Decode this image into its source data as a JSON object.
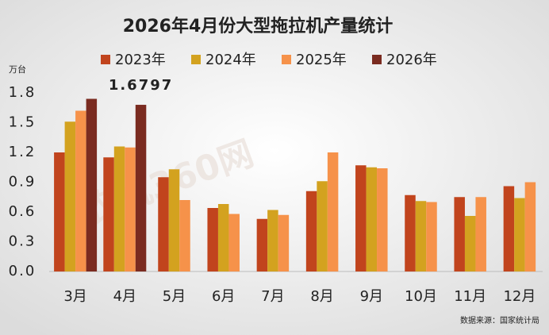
{
  "chart_data": {
    "type": "bar",
    "title": "2026年4月份大型拖拉机产量统计",
    "y_unit": "万台",
    "source": "数据来源：国家统计局",
    "watermark": "农机360网",
    "categories": [
      "3月",
      "4月",
      "5月",
      "6月",
      "7月",
      "8月",
      "9月",
      "10月",
      "11月",
      "12月"
    ],
    "series": [
      {
        "name": "2023年",
        "color": "#c1441d",
        "values": [
          1.2,
          1.15,
          0.95,
          0.64,
          0.53,
          0.81,
          1.07,
          0.77,
          0.75,
          0.86
        ]
      },
      {
        "name": "2024年",
        "color": "#d3a21f",
        "values": [
          1.51,
          1.26,
          1.03,
          0.68,
          0.62,
          0.91,
          1.05,
          0.71,
          0.56,
          0.74
        ]
      },
      {
        "name": "2025年",
        "color": "#f6924a",
        "values": [
          1.62,
          1.25,
          0.72,
          0.58,
          0.57,
          1.2,
          1.04,
          0.7,
          0.75,
          0.9
        ]
      },
      {
        "name": "2026年",
        "color": "#7a2b20",
        "values": [
          1.74,
          1.6797,
          null,
          null,
          null,
          null,
          null,
          null,
          null,
          null
        ],
        "value_labels": [
          null,
          "1.6797",
          null,
          null,
          null,
          null,
          null,
          null,
          null,
          null
        ]
      }
    ],
    "ylim": [
      0,
      1.8
    ],
    "yticks": [
      {
        "value": 0,
        "label": "0.0"
      },
      0.3,
      0.6,
      0.9,
      1.2,
      1.5,
      1.8
    ],
    "grid": false,
    "legend": "top"
  }
}
